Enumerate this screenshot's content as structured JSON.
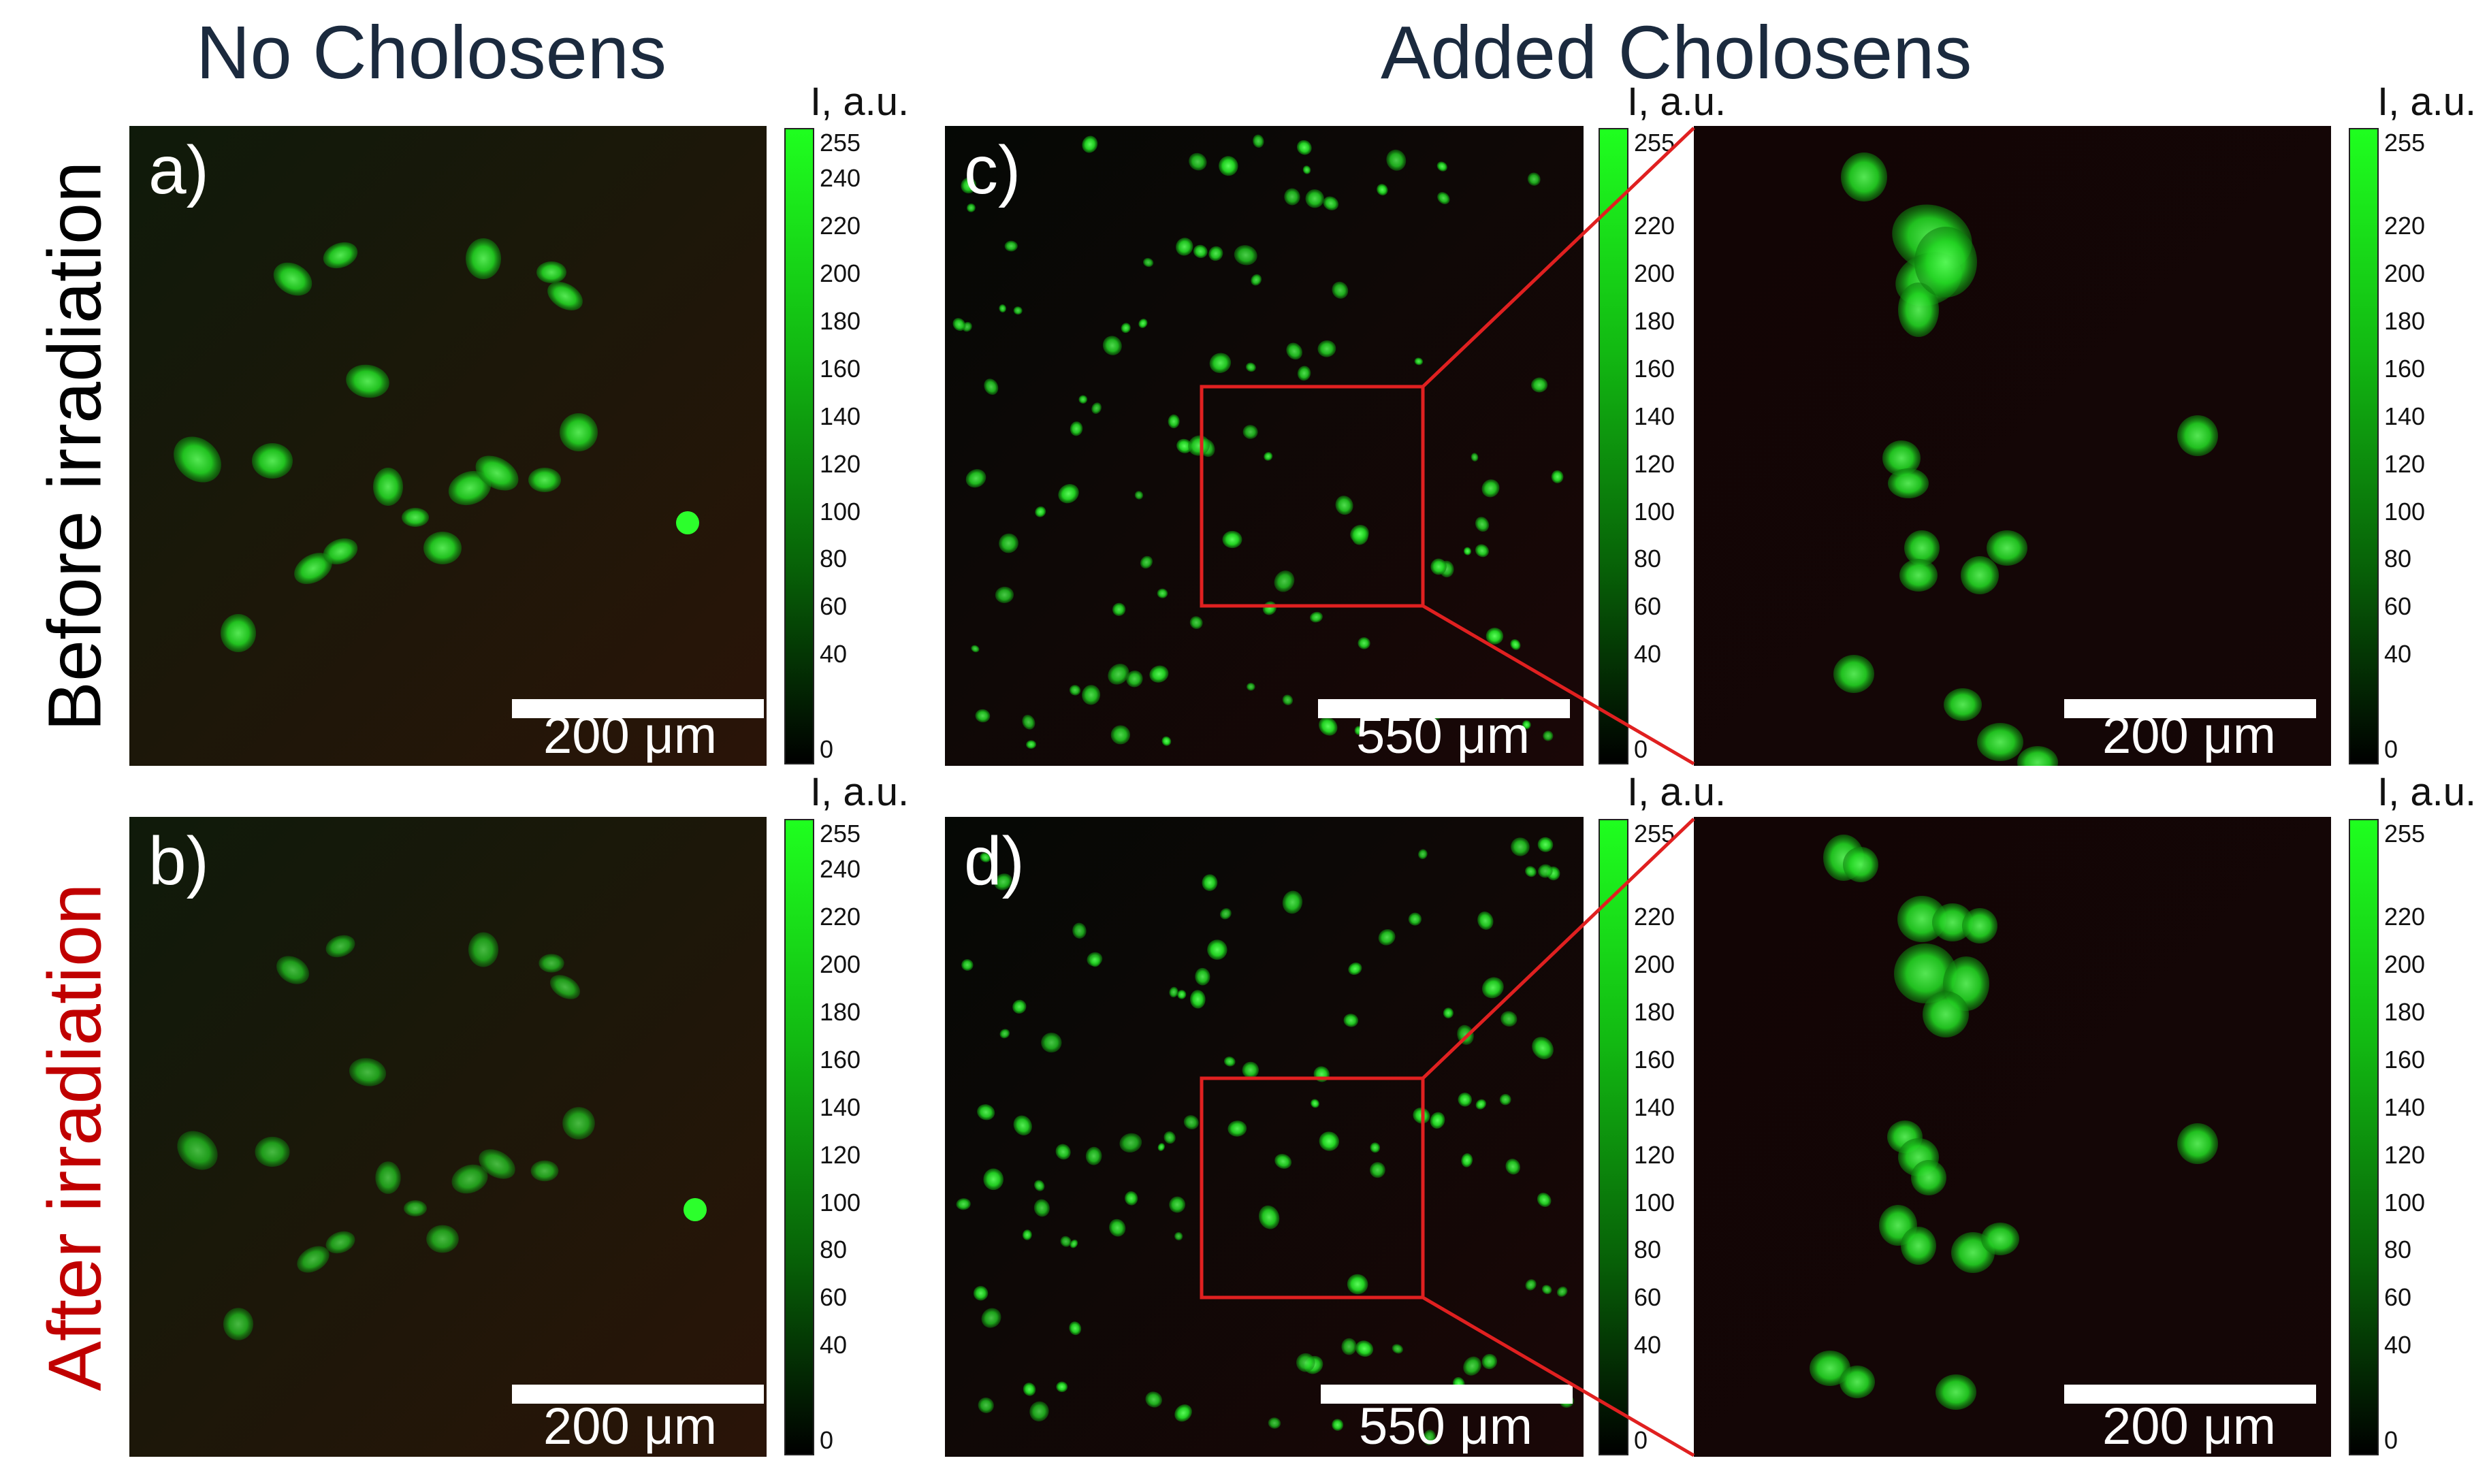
{
  "columns": {
    "left": "No Cholosens",
    "right": "Added Cholosens"
  },
  "rows": {
    "top": "Before irradiation",
    "bottom": "After irradiation"
  },
  "colors": {
    "before_label": "#000000",
    "after_label": "#c00000",
    "zoom_box": "#e02020",
    "cell_green": "#33ff33"
  },
  "panels": {
    "a": {
      "label": "a)",
      "scale": "200 μm"
    },
    "b": {
      "label": "b)",
      "scale": "200 μm"
    },
    "c": {
      "label": "c)",
      "scale": "550 μm"
    },
    "c_zoom": {
      "label": "",
      "scale": "200 μm"
    },
    "d": {
      "label": "d)",
      "scale": "550 μm"
    },
    "d_zoom": {
      "label": "",
      "scale": "200 μm"
    }
  },
  "colorbar": {
    "title": "I, a.u.",
    "ticks_small": [
      "255",
      "240",
      "220",
      "200",
      "180",
      "160",
      "140",
      "120",
      "100",
      "80",
      "60",
      "40",
      "0"
    ],
    "ticks_large": [
      "255",
      "220",
      "200",
      "180",
      "160",
      "140",
      "120",
      "100",
      "80",
      "60",
      "40",
      "0"
    ]
  }
}
